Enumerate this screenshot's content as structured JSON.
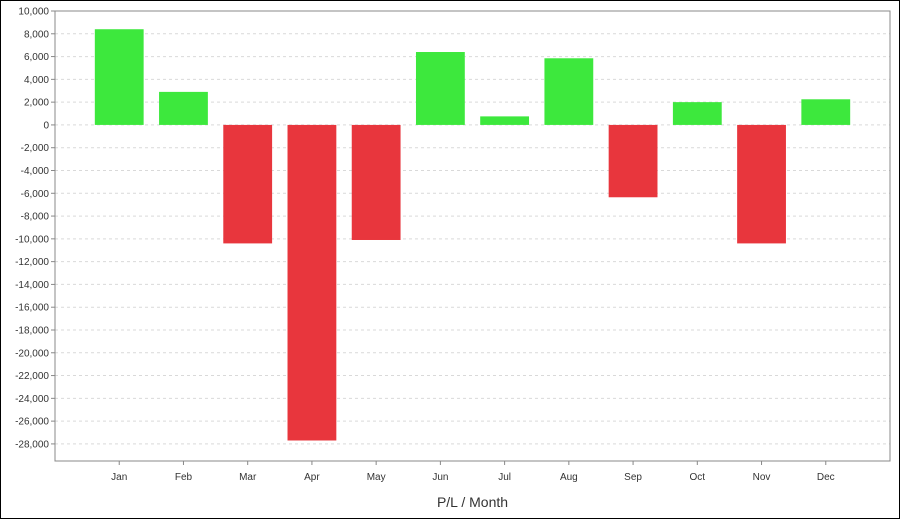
{
  "chart_data": {
    "type": "bar",
    "title": "",
    "xlabel": "P/L / Month",
    "ylabel": "",
    "categories": [
      "Jan",
      "Feb",
      "Mar",
      "Apr",
      "May",
      "Jun",
      "Jul",
      "Aug",
      "Sep",
      "Oct",
      "Nov",
      "Dec"
    ],
    "values": [
      8400,
      2900,
      -10400,
      -27700,
      -10100,
      6400,
      750,
      5850,
      -6350,
      2000,
      -10400,
      2250
    ],
    "ylim": [
      -29500,
      10000
    ],
    "yticks": [
      10000,
      8000,
      6000,
      4000,
      2000,
      0,
      -2000,
      -4000,
      -6000,
      -8000,
      -10000,
      -12000,
      -14000,
      -16000,
      -18000,
      -20000,
      -22000,
      -24000,
      -26000,
      -28000
    ],
    "ytick_labels": [
      "10,000",
      "8,000",
      "6,000",
      "4,000",
      "2,000",
      "0",
      "-2,000",
      "-4,000",
      "-6,000",
      "-8,000",
      "-10,000",
      "-12,000",
      "-14,000",
      "-16,000",
      "-18,000",
      "-20,000",
      "-22,000",
      "-24,000",
      "-26,000",
      "-28,000"
    ],
    "grid": true,
    "legend": "none",
    "colors": {
      "positive": "#3de83d",
      "negative": "#e8363d",
      "grid": "#d9d9d9",
      "axis": "#888888"
    }
  }
}
